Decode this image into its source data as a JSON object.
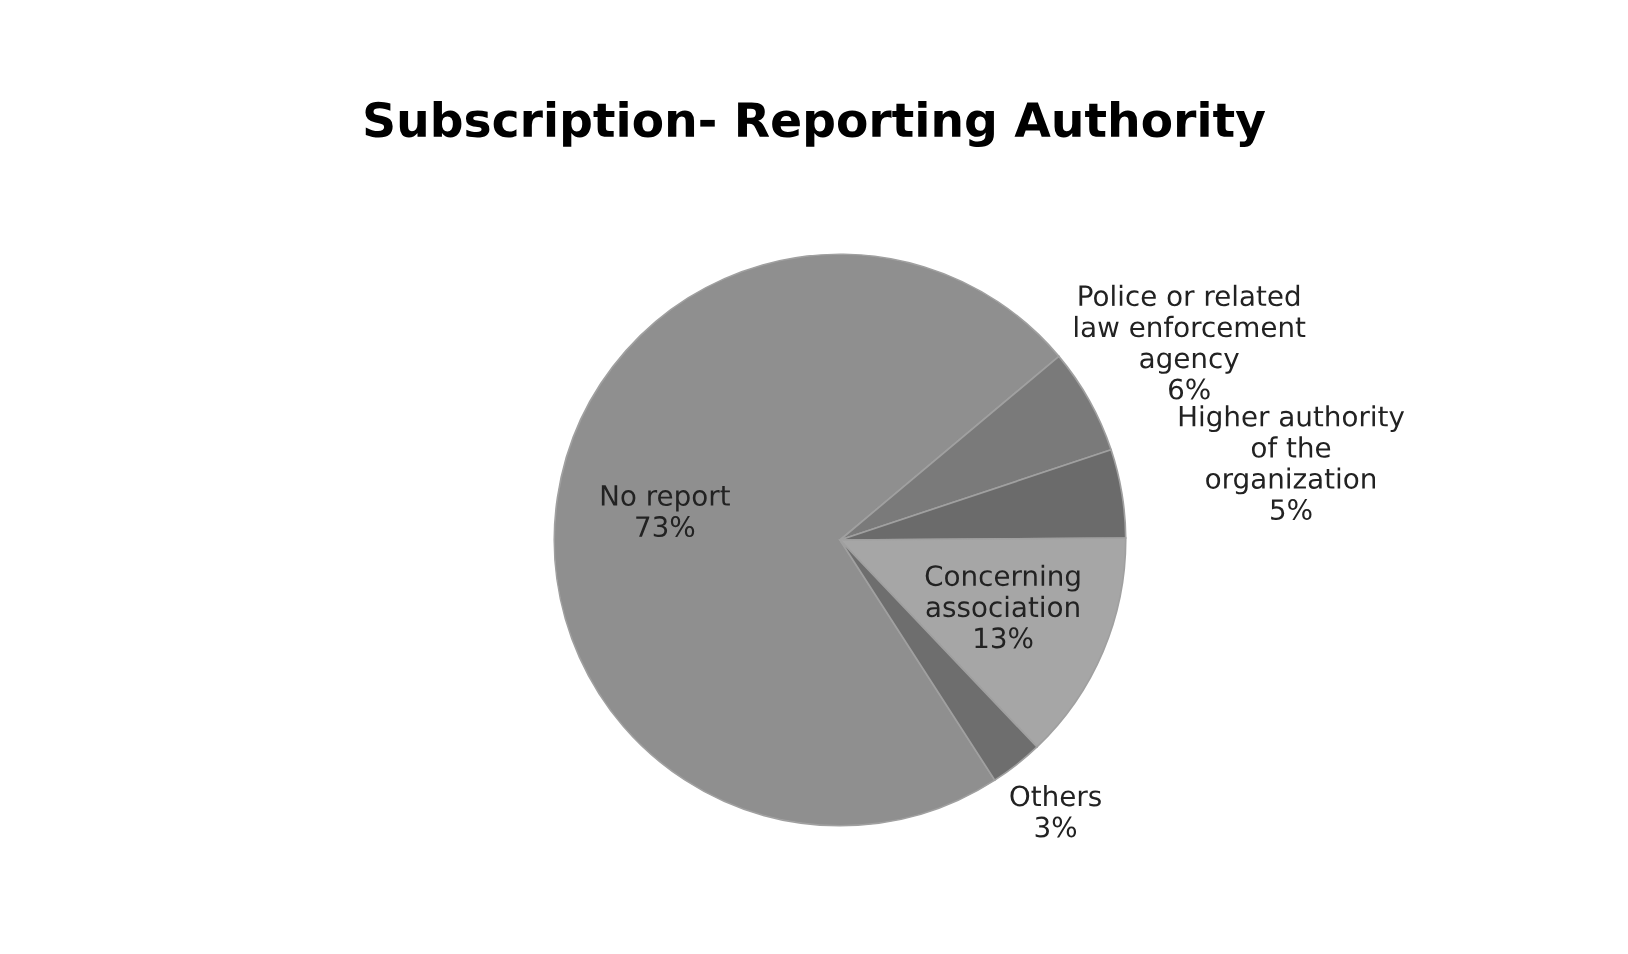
{
  "chart_data": {
    "type": "pie",
    "title": "Subscription- Reporting Authority",
    "categories": [
      "No report",
      "Police or related\nlaw enforcement\nagency",
      "Higher authority\nof the\norganization",
      "Concerning\nassociation",
      "Others"
    ],
    "values": [
      73,
      6,
      5,
      13,
      3
    ],
    "value_labels": [
      "73%",
      "6%",
      "5%",
      "13%",
      "3%"
    ],
    "colors": [
      "#8f8f8f",
      "#7a7a7a",
      "#6b6b6b",
      "#a6a6a6",
      "#6e6e6e"
    ],
    "legend": false
  }
}
